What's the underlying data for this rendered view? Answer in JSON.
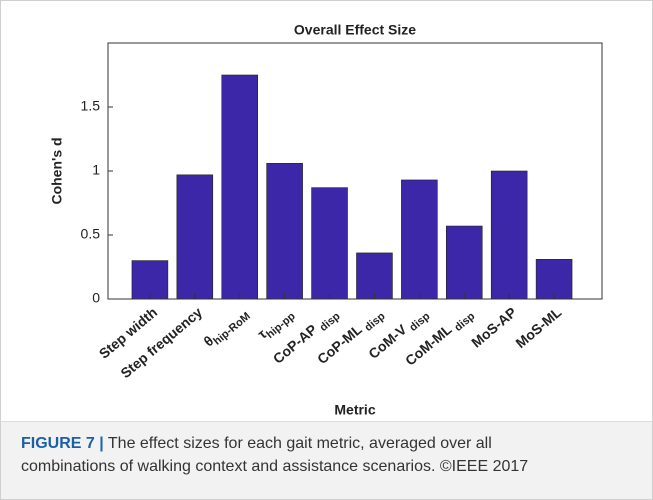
{
  "chart_data": {
    "type": "bar",
    "title": "Overall Effect Size",
    "xlabel": "Metric",
    "ylabel": "Cohen's d",
    "categories": [
      "Step width",
      "Step frequency",
      [
        "θ",
        "hip-RoM"
      ],
      [
        "τ",
        "hip-pp"
      ],
      [
        "CoP-AP ",
        "disp"
      ],
      [
        "CoP-ML ",
        "disp"
      ],
      [
        "CoM-V ",
        "disp"
      ],
      [
        "CoM-ML ",
        "disp"
      ],
      "MoS-AP",
      "MoS-ML"
    ],
    "values": [
      0.3,
      0.97,
      1.75,
      1.06,
      0.87,
      0.36,
      0.93,
      0.57,
      1.0,
      0.31
    ],
    "color": "#3b27a8",
    "ylim": [
      0,
      2
    ],
    "yticks": [
      0,
      0.5,
      1,
      1.5
    ],
    "grid": false
  },
  "caption": {
    "label": "FIGURE 7",
    "separator": "|",
    "lines": [
      "The effect sizes for each gait metric, averaged over all",
      "combinations of walking context and assistance scenarios. ©IEEE 2017"
    ]
  }
}
